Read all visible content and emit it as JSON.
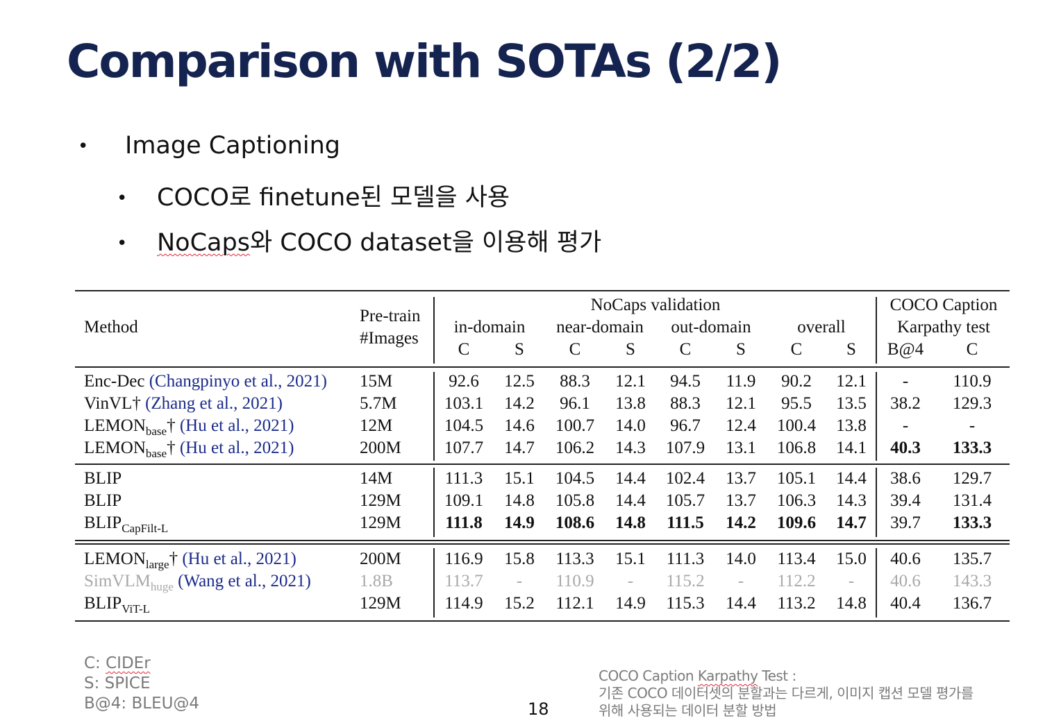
{
  "title": "Comparison with SOTAs (2/2)",
  "bullets": {
    "main": "Image Captioning",
    "sub1": "COCO로 finetune된 모델을 사용",
    "sub2_a": "NoCaps",
    "sub2_b": "와 COCO dataset을 이용해 평가"
  },
  "table": {
    "headers": {
      "method": "Method",
      "pretrain_1": "Pre-train",
      "pretrain_2": "#Images",
      "nocaps": "NoCaps validation",
      "coco_1": "COCO Caption",
      "coco_2": "Karpathy test",
      "groups": [
        "in-domain",
        "near-domain",
        "out-domain",
        "overall"
      ],
      "metrics": [
        "C",
        "S",
        "C",
        "S",
        "C",
        "S",
        "C",
        "S",
        "B@4",
        "C"
      ]
    },
    "rows": [
      {
        "method": "Enc-Dec ",
        "cite": "(Changpinyo et al., 2021)",
        "images": "15M",
        "vals": [
          "92.6",
          "12.5",
          "88.3",
          "12.1",
          "94.5",
          "11.9",
          "90.2",
          "12.1",
          "-",
          "110.9"
        ]
      },
      {
        "method": "VinVL† ",
        "cite": "(Zhang et al., 2021)",
        "images": "5.7M",
        "vals": [
          "103.1",
          "14.2",
          "96.1",
          "13.8",
          "88.3",
          "12.1",
          "95.5",
          "13.5",
          "38.2",
          "129.3"
        ]
      },
      {
        "method": "LEMON",
        "sub": "base",
        "method2": "† ",
        "cite": "(Hu et al., 2021)",
        "images": "12M",
        "vals": [
          "104.5",
          "14.6",
          "100.7",
          "14.0",
          "96.7",
          "12.4",
          "100.4",
          "13.8",
          "-",
          "-"
        ]
      },
      {
        "method": "LEMON",
        "sub": "base",
        "method2": "† ",
        "cite": "(Hu et al., 2021)",
        "images": "200M",
        "vals": [
          "107.7",
          "14.7",
          "106.2",
          "14.3",
          "107.9",
          "13.1",
          "106.8",
          "14.1",
          "40.3",
          "133.3"
        ]
      },
      {
        "method": "BLIP",
        "images": "14M",
        "vals": [
          "111.3",
          "15.1",
          "104.5",
          "14.4",
          "102.4",
          "13.7",
          "105.1",
          "14.4",
          "38.6",
          "129.7"
        ]
      },
      {
        "method": "BLIP",
        "images": "129M",
        "vals": [
          "109.1",
          "14.8",
          "105.8",
          "14.4",
          "105.7",
          "13.7",
          "106.3",
          "14.3",
          "39.4",
          "131.4"
        ]
      },
      {
        "method": "BLIP",
        "sub": "CapFilt-L",
        "images": "129M",
        "vals": [
          "111.8",
          "14.9",
          "108.6",
          "14.8",
          "111.5",
          "14.2",
          "109.6",
          "14.7",
          "39.7",
          "133.3"
        ]
      },
      {
        "method": "LEMON",
        "sub": "large",
        "method2": "† ",
        "cite": "(Hu et al., 2021)",
        "images": "200M",
        "vals": [
          "116.9",
          "15.8",
          "113.3",
          "15.1",
          "111.3",
          "14.0",
          "113.4",
          "15.0",
          "40.6",
          "135.7"
        ]
      },
      {
        "method": "SimVLM",
        "sub": "huge",
        "method2": " ",
        "cite": "(Wang et al., 2021)",
        "images": "1.8B",
        "vals": [
          "113.7",
          "-",
          "110.9",
          "-",
          "115.2",
          "-",
          "112.2",
          "-",
          "40.6",
          "143.3"
        ]
      },
      {
        "method": "BLIP",
        "sub": "ViT-L",
        "images": "129M",
        "vals": [
          "114.9",
          "15.2",
          "112.1",
          "14.9",
          "115.3",
          "14.4",
          "113.2",
          "14.8",
          "40.4",
          "136.7"
        ]
      }
    ]
  },
  "legend": [
    "C: CIDEr",
    "S: SPICE",
    "B@4: BLEU@4"
  ],
  "legend_squiggle_word": "CIDEr",
  "note": {
    "line1_a": "COCO Caption ",
    "line1_b": "Karpathy",
    "line1_c": " Test :",
    "line2": "기존 COCO 데이터셋의 분할과는 다르게, 이미지 캡션 모델 평가를",
    "line3": "위해 사용되는 데이터 분할 방법"
  },
  "page_number": "18",
  "colors": {
    "title": "#14234f",
    "citation": "#1a2a8a",
    "muted": "#a8a8a8",
    "squiggle": "#d23"
  }
}
